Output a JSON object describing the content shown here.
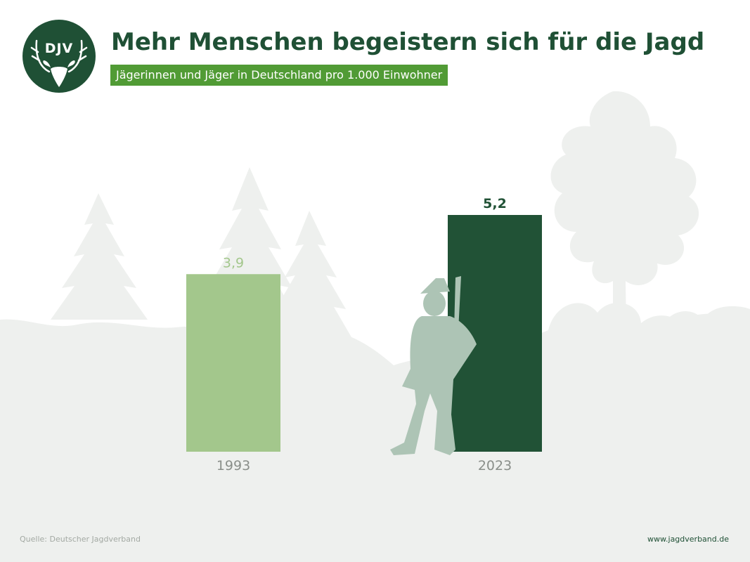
{
  "header": {
    "logo_text": "DJV",
    "title": "Mehr Menschen begeistern sich für die Jagd",
    "subtitle": "Jägerinnen und Jäger in Deutschland pro 1.000 Einwohner"
  },
  "footer": {
    "source": "Quelle: Deutscher Jagdverband",
    "url": "www.jagdverband.de"
  },
  "colors": {
    "brand_dark": "#1f5035",
    "brand_green": "#519b35",
    "bar_1993": "#a3c78c",
    "bar_2023": "#215236",
    "hunter_silhouette": "#adc4b5",
    "background_silhouette": "#eef0ee"
  },
  "icons": [
    "deer-antler-logo-icon",
    "hunter-silhouette-icon",
    "forest-silhouette-icon"
  ],
  "chart_data": {
    "type": "bar",
    "categories": [
      "1993",
      "2023"
    ],
    "values": [
      3.9,
      5.2
    ],
    "value_labels": [
      "3,9",
      "5,2"
    ],
    "title": "Mehr Menschen begeistern sich für die Jagd",
    "subtitle": "Jägerinnen und Jäger in Deutschland pro 1.000 Einwohner",
    "xlabel": "",
    "ylabel": "",
    "ylim": [
      0,
      5.2
    ],
    "grid": false,
    "legend": "none"
  }
}
